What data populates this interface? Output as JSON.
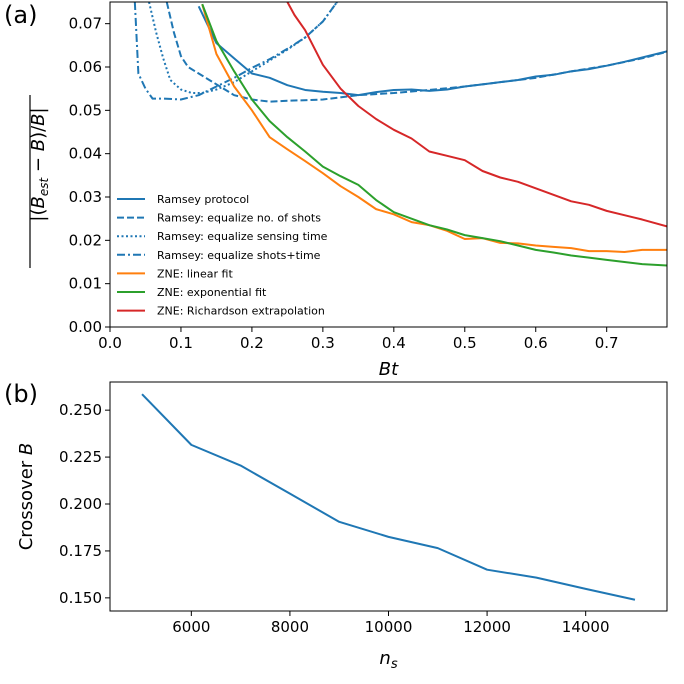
{
  "panel_a_label": "(a)",
  "panel_b_label": "(b)",
  "chart_data": [
    {
      "type": "line",
      "panel": "(a)",
      "xlabel": "Bt",
      "ylabel": "|(B_est − B)/B|",
      "xlim": [
        0.0,
        0.785
      ],
      "ylim": [
        0.0,
        0.075
      ],
      "xticks": [
        "0.0",
        "0.1",
        "0.2",
        "0.3",
        "0.4",
        "0.5",
        "0.6",
        "0.7"
      ],
      "yticks": [
        "0.00",
        "0.01",
        "0.02",
        "0.03",
        "0.04",
        "0.05",
        "0.06",
        "0.07"
      ],
      "legend_position": "lower-left",
      "grid": false,
      "series": [
        {
          "name": "Ramsey protocol",
          "color": "#1f77b4",
          "dash": "solid",
          "x": [
            0.125,
            0.15,
            0.175,
            0.2,
            0.225,
            0.25,
            0.275,
            0.3,
            0.325,
            0.35,
            0.375,
            0.4,
            0.425,
            0.45,
            0.475,
            0.5,
            0.525,
            0.55,
            0.575,
            0.6,
            0.625,
            0.65,
            0.675,
            0.7,
            0.725,
            0.75,
            0.785
          ],
          "y": [
            0.074,
            0.0655,
            0.062,
            0.0585,
            0.0575,
            0.0558,
            0.0547,
            0.0543,
            0.054,
            0.0535,
            0.0542,
            0.0547,
            0.0548,
            0.0545,
            0.0548,
            0.0555,
            0.056,
            0.0565,
            0.057,
            0.0578,
            0.0582,
            0.059,
            0.0595,
            0.0603,
            0.0612,
            0.0622,
            0.0636
          ]
        },
        {
          "name": "Ramsey: equalize no. of shots",
          "color": "#1f77b4",
          "dash": "dashed",
          "x": [
            0.08,
            0.09,
            0.1,
            0.11,
            0.125,
            0.15,
            0.175,
            0.2,
            0.225,
            0.25,
            0.3,
            0.35,
            0.4,
            0.45,
            0.5,
            0.55,
            0.6,
            0.65,
            0.7,
            0.75,
            0.785
          ],
          "y": [
            0.075,
            0.068,
            0.0625,
            0.06,
            0.0585,
            0.056,
            0.0535,
            0.0525,
            0.052,
            0.0522,
            0.0525,
            0.0535,
            0.054,
            0.0547,
            0.0555,
            0.0565,
            0.0575,
            0.059,
            0.0603,
            0.062,
            0.0635
          ]
        },
        {
          "name": "Ramsey: equalize sensing time",
          "color": "#1f77b4",
          "dash": "dotted",
          "x": [
            0.055,
            0.065,
            0.075,
            0.085,
            0.1,
            0.115,
            0.13,
            0.15,
            0.175,
            0.2,
            0.225,
            0.25,
            0.275,
            0.3,
            0.32
          ],
          "y": [
            0.075,
            0.068,
            0.062,
            0.057,
            0.0548,
            0.054,
            0.054,
            0.0548,
            0.0565,
            0.059,
            0.0615,
            0.064,
            0.0668,
            0.0705,
            0.075
          ]
        },
        {
          "name": "Ramsey: equalize shots+time",
          "color": "#1f77b4",
          "dash": "dashdot",
          "x": [
            0.035,
            0.04,
            0.05,
            0.06,
            0.075,
            0.1,
            0.125,
            0.15,
            0.175,
            0.2,
            0.225,
            0.25,
            0.275,
            0.3,
            0.32
          ],
          "y": [
            0.075,
            0.0585,
            0.055,
            0.0527,
            0.0527,
            0.0525,
            0.0535,
            0.0555,
            0.0575,
            0.0598,
            0.0618,
            0.0642,
            0.0668,
            0.0705,
            0.075
          ]
        },
        {
          "name": "ZNE: linear fit",
          "color": "#ff7f0e",
          "dash": "solid",
          "x": [
            0.13,
            0.15,
            0.175,
            0.2,
            0.225,
            0.25,
            0.275,
            0.3,
            0.325,
            0.35,
            0.375,
            0.4,
            0.425,
            0.45,
            0.475,
            0.5,
            0.525,
            0.55,
            0.575,
            0.6,
            0.625,
            0.65,
            0.675,
            0.7,
            0.725,
            0.75,
            0.785
          ],
          "y": [
            0.0745,
            0.063,
            0.0555,
            0.05,
            0.0438,
            0.041,
            0.0383,
            0.0355,
            0.0325,
            0.03,
            0.0272,
            0.026,
            0.0242,
            0.0235,
            0.0222,
            0.0203,
            0.0205,
            0.0194,
            0.0193,
            0.0188,
            0.0185,
            0.0182,
            0.0175,
            0.0175,
            0.0173,
            0.0178,
            0.0178
          ]
        },
        {
          "name": "ZNE: exponential fit",
          "color": "#2ca02c",
          "dash": "solid",
          "x": [
            0.13,
            0.15,
            0.175,
            0.2,
            0.225,
            0.25,
            0.275,
            0.3,
            0.325,
            0.35,
            0.375,
            0.4,
            0.425,
            0.45,
            0.475,
            0.5,
            0.525,
            0.55,
            0.575,
            0.6,
            0.625,
            0.65,
            0.675,
            0.7,
            0.725,
            0.75,
            0.785
          ],
          "y": [
            0.0745,
            0.066,
            0.059,
            0.0525,
            0.0475,
            0.0438,
            0.0405,
            0.037,
            0.0348,
            0.0328,
            0.0293,
            0.0265,
            0.025,
            0.0235,
            0.0225,
            0.0212,
            0.0205,
            0.0198,
            0.0188,
            0.0178,
            0.0172,
            0.0165,
            0.016,
            0.0155,
            0.015,
            0.0145,
            0.0142
          ]
        },
        {
          "name": "ZNE: Richardson extrapolation",
          "color": "#d62728",
          "dash": "solid",
          "x": [
            0.25,
            0.26,
            0.275,
            0.3,
            0.325,
            0.35,
            0.375,
            0.4,
            0.425,
            0.45,
            0.475,
            0.5,
            0.525,
            0.55,
            0.575,
            0.6,
            0.625,
            0.65,
            0.675,
            0.7,
            0.725,
            0.75,
            0.785
          ],
          "y": [
            0.075,
            0.072,
            0.0685,
            0.0605,
            0.055,
            0.051,
            0.048,
            0.0455,
            0.0435,
            0.0405,
            0.0395,
            0.0385,
            0.036,
            0.0345,
            0.0335,
            0.032,
            0.0305,
            0.029,
            0.0282,
            0.0268,
            0.0258,
            0.0248,
            0.0232
          ]
        }
      ]
    },
    {
      "type": "line",
      "panel": "(b)",
      "xlabel": "n_s",
      "ylabel": "Crossover B",
      "xlim": [
        4350,
        15650
      ],
      "ylim": [
        0.143,
        0.265
      ],
      "xticks": [
        "6000",
        "8000",
        "10000",
        "12000",
        "14000"
      ],
      "yticks": [
        "0.150",
        "0.175",
        "0.200",
        "0.225",
        "0.250"
      ],
      "grid": false,
      "series": [
        {
          "color": "#1f77b4",
          "x": [
            5000,
            6000,
            7000,
            8000,
            9000,
            10000,
            11000,
            12000,
            13000,
            14000,
            15000
          ],
          "y": [
            0.2585,
            0.2315,
            0.2205,
            0.2055,
            0.1905,
            0.1825,
            0.1765,
            0.165,
            0.1608,
            0.1548,
            0.149
          ]
        }
      ]
    }
  ]
}
